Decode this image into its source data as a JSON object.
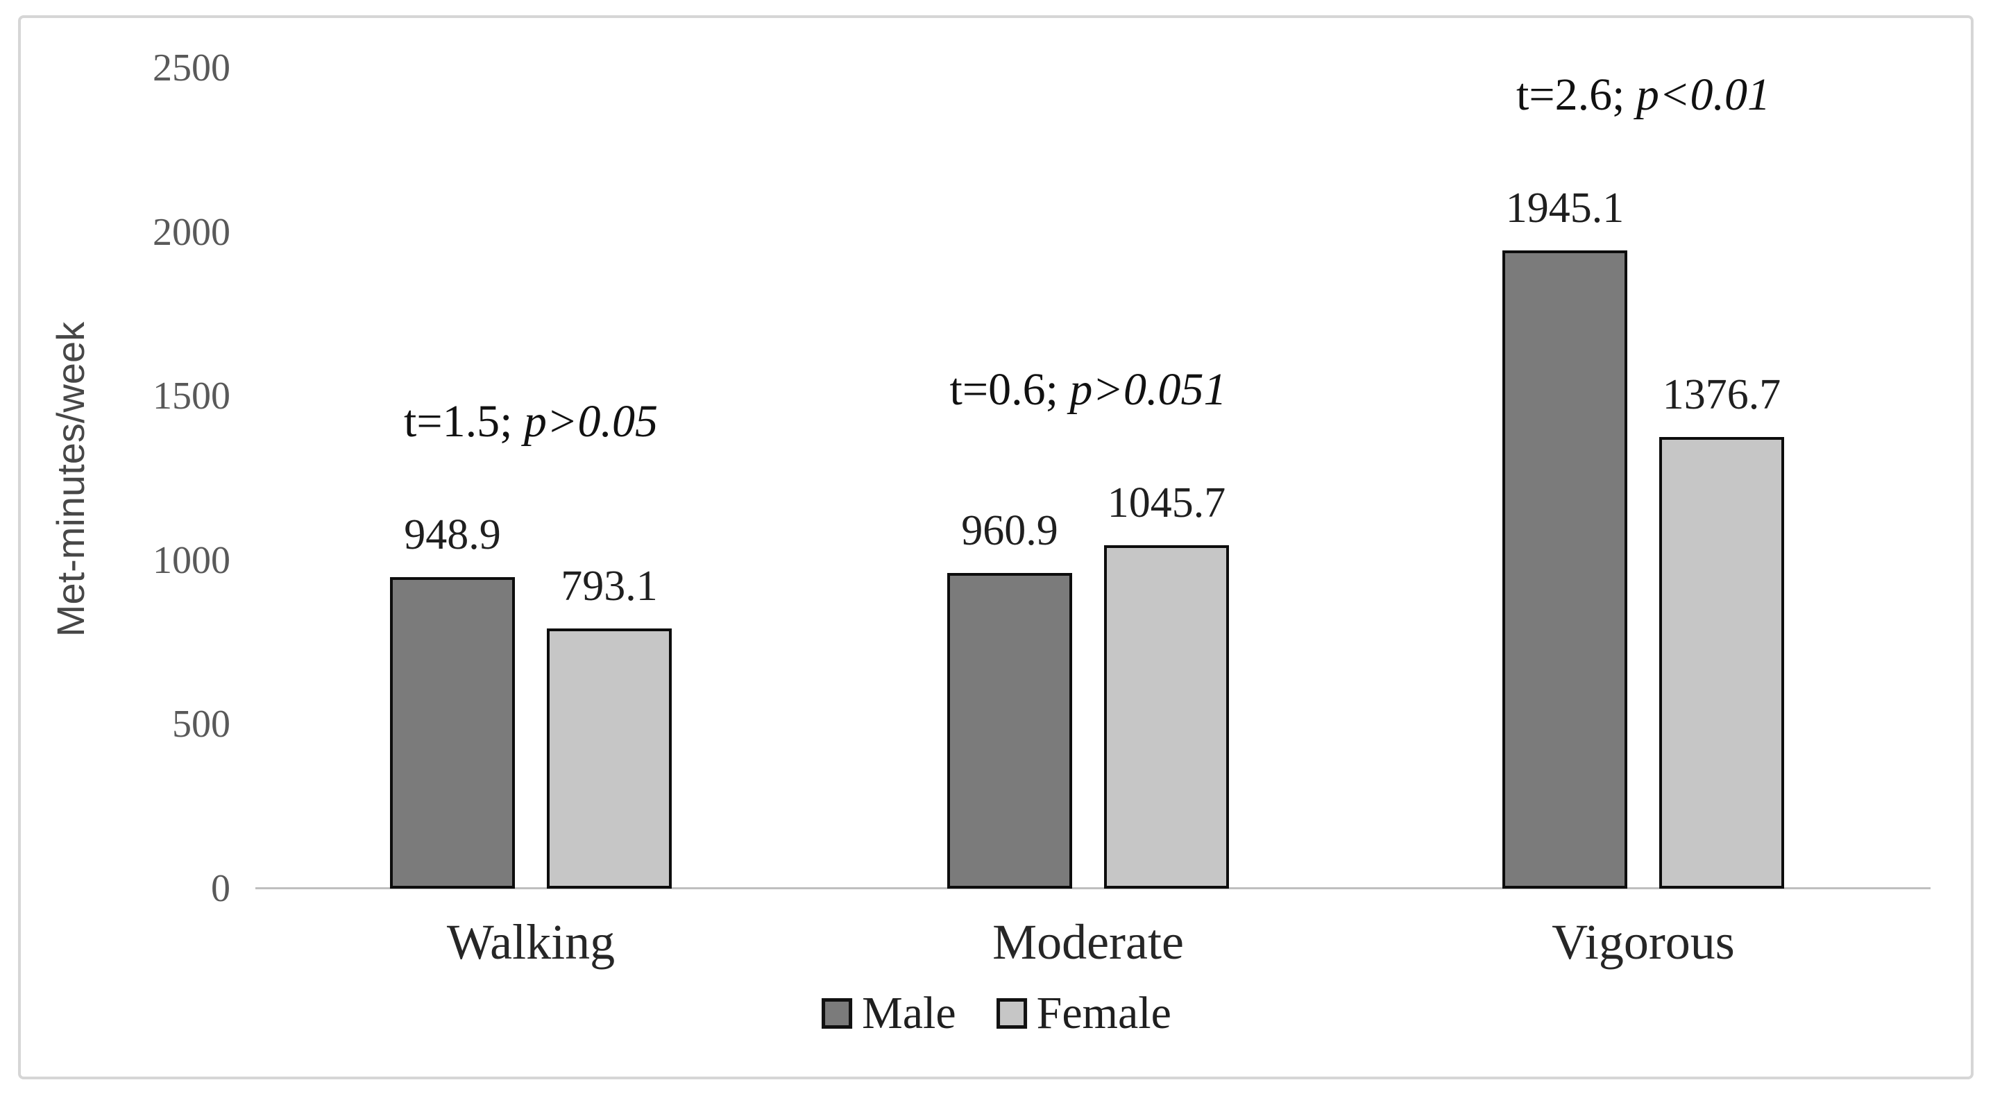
{
  "chart_data": {
    "type": "bar",
    "title": "",
    "ylabel": "Met-minutes/week",
    "xlabel": "",
    "categories": [
      "Walking",
      "Moderate",
      "Vigorous"
    ],
    "series": [
      {
        "name": "Male",
        "color": "#7b7b7b",
        "values": [
          948.9,
          960.9,
          1945.1
        ]
      },
      {
        "name": "Female",
        "color": "#c6c6c6",
        "values": [
          793.1,
          1045.7,
          1376.7
        ]
      }
    ],
    "value_labels": [
      [
        "948.9",
        "793.1"
      ],
      [
        "960.9",
        "1045.7"
      ],
      [
        "1945.1",
        "1376.7"
      ]
    ],
    "annotations": [
      "t=1.5; p>0.05",
      "t=0.6; p>0.051",
      "t=2.6; p<0.01"
    ],
    "yticks": [
      "0",
      "500",
      "1000",
      "1500",
      "2000",
      "2500"
    ],
    "ylim": [
      0,
      2500
    ],
    "grid": false,
    "legend": {
      "position": "bottom-center",
      "entries": [
        "Male",
        "Female"
      ]
    },
    "colors": {
      "bar_border": "#0d0d0d",
      "axis_line": "#bfbfbf",
      "tick_text": "#595959",
      "label_text": "#1f1f1f",
      "figure_border": "#d6d6d6"
    }
  }
}
